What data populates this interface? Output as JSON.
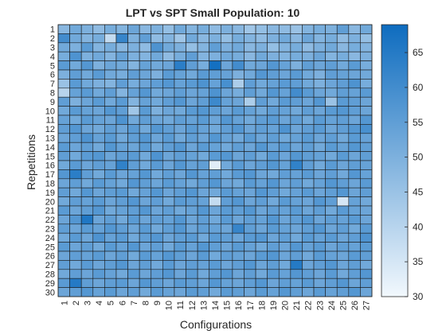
{
  "chart_data": {
    "type": "heatmap",
    "title": "LPT vs SPT Small Population: 10",
    "xlabel": "Configurations",
    "ylabel": "Repetitions",
    "x_categories": [
      "1",
      "2",
      "3",
      "4",
      "5",
      "6",
      "7",
      "8",
      "9",
      "10",
      "11",
      "12",
      "13",
      "14",
      "15",
      "16",
      "17",
      "18",
      "19",
      "20",
      "21",
      "22",
      "23",
      "24",
      "25",
      "26",
      "27"
    ],
    "y_categories": [
      "1",
      "2",
      "3",
      "4",
      "5",
      "6",
      "7",
      "8",
      "9",
      "10",
      "11",
      "12",
      "13",
      "14",
      "15",
      "16",
      "17",
      "18",
      "19",
      "20",
      "21",
      "22",
      "23",
      "24",
      "25",
      "26",
      "27",
      "28",
      "29",
      "30"
    ],
    "colorbar": {
      "min": 30,
      "max": 69,
      "ticks": [
        "35",
        "40",
        "45",
        "50",
        "55",
        "60",
        "65"
      ]
    },
    "grid": true,
    "colormap": {
      "low": "#f2f8fd",
      "high": "#0e6cbf"
    },
    "values": [
      [
        48,
        52,
        50,
        47,
        51,
        49,
        53,
        48,
        50,
        46,
        52,
        49,
        51,
        47,
        50,
        48,
        44,
        46,
        48,
        47,
        45,
        49,
        51,
        50,
        55,
        48,
        52
      ],
      [
        60,
        52,
        49,
        51,
        38,
        62,
        50,
        55,
        47,
        49,
        44,
        52,
        48,
        50,
        46,
        51,
        49,
        47,
        50,
        52,
        48,
        53,
        49,
        51,
        47,
        50,
        46
      ],
      [
        52,
        50,
        56,
        49,
        51,
        48,
        50,
        47,
        58,
        52,
        50,
        46,
        49,
        55,
        50,
        52,
        48,
        50,
        46,
        49,
        51,
        47,
        50,
        52,
        48,
        51,
        49
      ],
      [
        51,
        58,
        50,
        52,
        49,
        54,
        50,
        49,
        52,
        47,
        51,
        55,
        49,
        50,
        52,
        51,
        48,
        52,
        50,
        49,
        51,
        50,
        53,
        49,
        51,
        48,
        50
      ],
      [
        56,
        52,
        57,
        50,
        53,
        52,
        49,
        54,
        52,
        53,
        64,
        55,
        51,
        68,
        53,
        60,
        52,
        53,
        57,
        54,
        50,
        55,
        53,
        55,
        52,
        56,
        51
      ],
      [
        50,
        55,
        52,
        56,
        52,
        51,
        55,
        53,
        50,
        56,
        54,
        52,
        56,
        55,
        54,
        50,
        52,
        57,
        55,
        53,
        56,
        52,
        50,
        55,
        54,
        53,
        52
      ],
      [
        45,
        56,
        52,
        50,
        49,
        55,
        51,
        53,
        55,
        57,
        54,
        56,
        58,
        54,
        59,
        42,
        55,
        52,
        54,
        56,
        55,
        52,
        50,
        53,
        55,
        58,
        51
      ],
      [
        40,
        54,
        56,
        52,
        55,
        49,
        54,
        57,
        52,
        53,
        55,
        53,
        54,
        58,
        53,
        51,
        55,
        52,
        57,
        54,
        60,
        56,
        53,
        52,
        55,
        54,
        56
      ],
      [
        55,
        50,
        53,
        56,
        52,
        56,
        49,
        54,
        52,
        55,
        57,
        53,
        55,
        61,
        54,
        53,
        42,
        55,
        52,
        56,
        55,
        53,
        57,
        45,
        56,
        55,
        53
      ],
      [
        52,
        56,
        54,
        53,
        57,
        55,
        44,
        56,
        50,
        53,
        52,
        56,
        57,
        55,
        53,
        56,
        54,
        52,
        55,
        54,
        52,
        55,
        53,
        56,
        57,
        55,
        53
      ],
      [
        54,
        52,
        56,
        54,
        53,
        58,
        52,
        55,
        53,
        52,
        55,
        54,
        56,
        53,
        57,
        54,
        52,
        55,
        56,
        53,
        55,
        52,
        56,
        54,
        55,
        53,
        57
      ],
      [
        55,
        57,
        53,
        52,
        55,
        53,
        56,
        52,
        57,
        55,
        53,
        56,
        54,
        52,
        55,
        57,
        53,
        55,
        54,
        58,
        53,
        55,
        56,
        53,
        55,
        57,
        59
      ],
      [
        53,
        55,
        58,
        54,
        56,
        52,
        55,
        57,
        53,
        56,
        52,
        55,
        53,
        57,
        54,
        52,
        56,
        53,
        55,
        52,
        54,
        56,
        53,
        55,
        52,
        56,
        54
      ],
      [
        56,
        53,
        55,
        52,
        57,
        54,
        53,
        56,
        52,
        55,
        57,
        53,
        56,
        54,
        52,
        55,
        53,
        57,
        54,
        56,
        53,
        55,
        52,
        56,
        54,
        57,
        55
      ],
      [
        55,
        52,
        56,
        57,
        53,
        55,
        56,
        52,
        58,
        53,
        55,
        54,
        52,
        56,
        57,
        53,
        55,
        52,
        56,
        53,
        57,
        55,
        54,
        52,
        56,
        53,
        55
      ],
      [
        52,
        56,
        53,
        55,
        54,
        63,
        55,
        52,
        56,
        53,
        57,
        54,
        55,
        33,
        52,
        56,
        53,
        55,
        57,
        54,
        63,
        55,
        52,
        56,
        53,
        55,
        54
      ],
      [
        57,
        64,
        55,
        52,
        56,
        53,
        54,
        57,
        52,
        55,
        53,
        57,
        54,
        55,
        52,
        56,
        57,
        53,
        52,
        55,
        54,
        56,
        53,
        55,
        52,
        57,
        54
      ],
      [
        53,
        55,
        52,
        56,
        54,
        52,
        57,
        55,
        53,
        56,
        54,
        52,
        55,
        57,
        53,
        52,
        56,
        54,
        57,
        53,
        55,
        52,
        54,
        57,
        55,
        53,
        56
      ],
      [
        55,
        52,
        57,
        53,
        55,
        56,
        52,
        54,
        57,
        53,
        55,
        57,
        53,
        52,
        56,
        54,
        53,
        57,
        55,
        52,
        54,
        56,
        53,
        55,
        57,
        53,
        55
      ],
      [
        52,
        55,
        54,
        56,
        53,
        55,
        57,
        53,
        55,
        52,
        56,
        55,
        54,
        38,
        55,
        57,
        53,
        55,
        52,
        56,
        54,
        53,
        57,
        55,
        35,
        54,
        52
      ],
      [
        56,
        53,
        55,
        57,
        52,
        54,
        55,
        57,
        53,
        55,
        52,
        54,
        57,
        53,
        56,
        55,
        57,
        53,
        55,
        54,
        56,
        53,
        55,
        52,
        56,
        54,
        53
      ],
      [
        53,
        57,
        66,
        53,
        55,
        52,
        56,
        53,
        55,
        54,
        57,
        53,
        55,
        52,
        56,
        53,
        55,
        54,
        57,
        53,
        55,
        57,
        53,
        55,
        54,
        56,
        53
      ],
      [
        55,
        53,
        56,
        54,
        57,
        55,
        53,
        56,
        52,
        55,
        57,
        53,
        55,
        54,
        53,
        62,
        55,
        53,
        56,
        54,
        53,
        55,
        57,
        53,
        55,
        52,
        56
      ],
      [
        52,
        56,
        53,
        58,
        54,
        56,
        52,
        55,
        57,
        53,
        55,
        56,
        52,
        56,
        55,
        53,
        56,
        57,
        53,
        55,
        52,
        56,
        54,
        56,
        53,
        55,
        58
      ],
      [
        56,
        53,
        55,
        52,
        56,
        54,
        57,
        53,
        55,
        52,
        56,
        54,
        57,
        55,
        53,
        56,
        54,
        52,
        55,
        53,
        57,
        54,
        56,
        53,
        55,
        54,
        56
      ],
      [
        53,
        55,
        54,
        56,
        53,
        55,
        52,
        56,
        54,
        57,
        55,
        53,
        56,
        52,
        55,
        54,
        53,
        56,
        57,
        53,
        55,
        52,
        56,
        54,
        53,
        56,
        55
      ],
      [
        55,
        52,
        56,
        53,
        55,
        57,
        53,
        55,
        52,
        56,
        53,
        55,
        54,
        56,
        53,
        55,
        57,
        53,
        55,
        52,
        65,
        53,
        55,
        57,
        53,
        55,
        52
      ],
      [
        52,
        55,
        53,
        56,
        54,
        52,
        56,
        53,
        55,
        57,
        53,
        56,
        52,
        55,
        57,
        53,
        55,
        52,
        56,
        54,
        57,
        55,
        53,
        56,
        52,
        55,
        57
      ],
      [
        56,
        65,
        55,
        53,
        55,
        56,
        53,
        57,
        55,
        53,
        56,
        55,
        53,
        57,
        54,
        53,
        55,
        57,
        53,
        55,
        54,
        56,
        53,
        55,
        57,
        53,
        55
      ],
      [
        53,
        55,
        57,
        54,
        56,
        53,
        55,
        52,
        56,
        54,
        53,
        56,
        55,
        52,
        56,
        55,
        53,
        56,
        54,
        57,
        55,
        53,
        56,
        54,
        55,
        57,
        53
      ]
    ]
  }
}
